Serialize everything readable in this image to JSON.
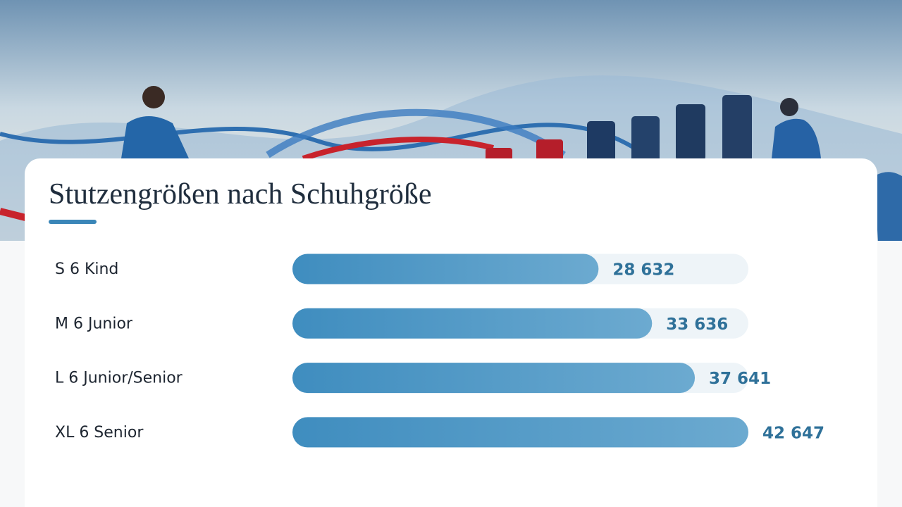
{
  "chart_data": {
    "type": "bar",
    "orientation": "horizontal",
    "title": "Stutzengrößen nach Schuhgröße",
    "categories": [
      "S 6 Kind",
      "M 6 Junior",
      "L 6 Junior/Senior",
      "XL 6 Senior"
    ],
    "values": [
      28632,
      33636,
      37641,
      42647
    ],
    "value_labels": [
      "28 632",
      "33 636",
      "37 641",
      "42 647"
    ],
    "color": "#4a93c2"
  }
}
